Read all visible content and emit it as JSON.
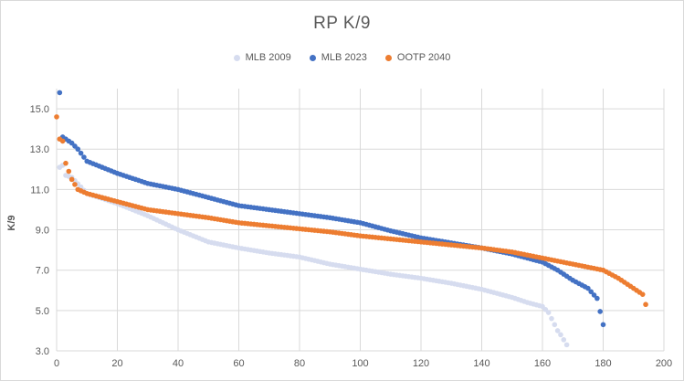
{
  "chart_data": {
    "type": "scatter",
    "title": "RP K/9",
    "xlabel": "",
    "ylabel": "K/9",
    "xlim": [
      0,
      200
    ],
    "ylim": [
      3.0,
      16.0
    ],
    "x_ticks": [
      0,
      20,
      40,
      60,
      80,
      100,
      120,
      140,
      160,
      180,
      200
    ],
    "y_ticks": [
      3.0,
      5.0,
      7.0,
      9.0,
      11.0,
      13.0,
      15.0
    ],
    "grid": "vertical and horizontal",
    "legend_position": "top",
    "series": [
      {
        "name": "MLB 2009",
        "color": "#d6dcef",
        "x": [
          1,
          2,
          3,
          5,
          10,
          20,
          30,
          40,
          50,
          60,
          70,
          80,
          90,
          100,
          110,
          120,
          130,
          140,
          150,
          155,
          160,
          162,
          165,
          166,
          168
        ],
        "values": [
          12.1,
          12.2,
          11.7,
          11.6,
          10.8,
          10.3,
          9.7,
          9.0,
          8.4,
          8.1,
          7.85,
          7.65,
          7.3,
          7.05,
          6.8,
          6.6,
          6.35,
          6.05,
          5.65,
          5.4,
          5.2,
          4.9,
          4.0,
          3.8,
          3.3
        ]
      },
      {
        "name": "MLB 2023",
        "color": "#4472c4",
        "x": [
          1,
          2,
          3,
          5,
          7,
          10,
          20,
          30,
          40,
          50,
          60,
          70,
          80,
          90,
          100,
          110,
          120,
          130,
          140,
          150,
          160,
          165,
          170,
          175,
          178,
          180
        ],
        "values": [
          15.8,
          13.6,
          13.5,
          13.3,
          13.0,
          12.4,
          11.8,
          11.3,
          11.0,
          10.6,
          10.2,
          10.0,
          9.8,
          9.6,
          9.35,
          8.95,
          8.6,
          8.35,
          8.1,
          7.8,
          7.4,
          7.0,
          6.5,
          6.1,
          5.6,
          4.3
        ]
      },
      {
        "name": "OOTP 2040",
        "color": "#ed7d31",
        "x": [
          0,
          1,
          2,
          3,
          5,
          7,
          10,
          20,
          30,
          40,
          50,
          60,
          70,
          80,
          90,
          100,
          110,
          120,
          130,
          140,
          150,
          160,
          170,
          180,
          185,
          190,
          193,
          194
        ],
        "values": [
          14.6,
          13.5,
          13.4,
          12.3,
          11.5,
          11.0,
          10.8,
          10.4,
          10.0,
          9.8,
          9.6,
          9.35,
          9.2,
          9.05,
          8.9,
          8.7,
          8.55,
          8.4,
          8.25,
          8.1,
          7.9,
          7.6,
          7.3,
          7.0,
          6.6,
          6.1,
          5.8,
          5.3
        ]
      }
    ]
  }
}
